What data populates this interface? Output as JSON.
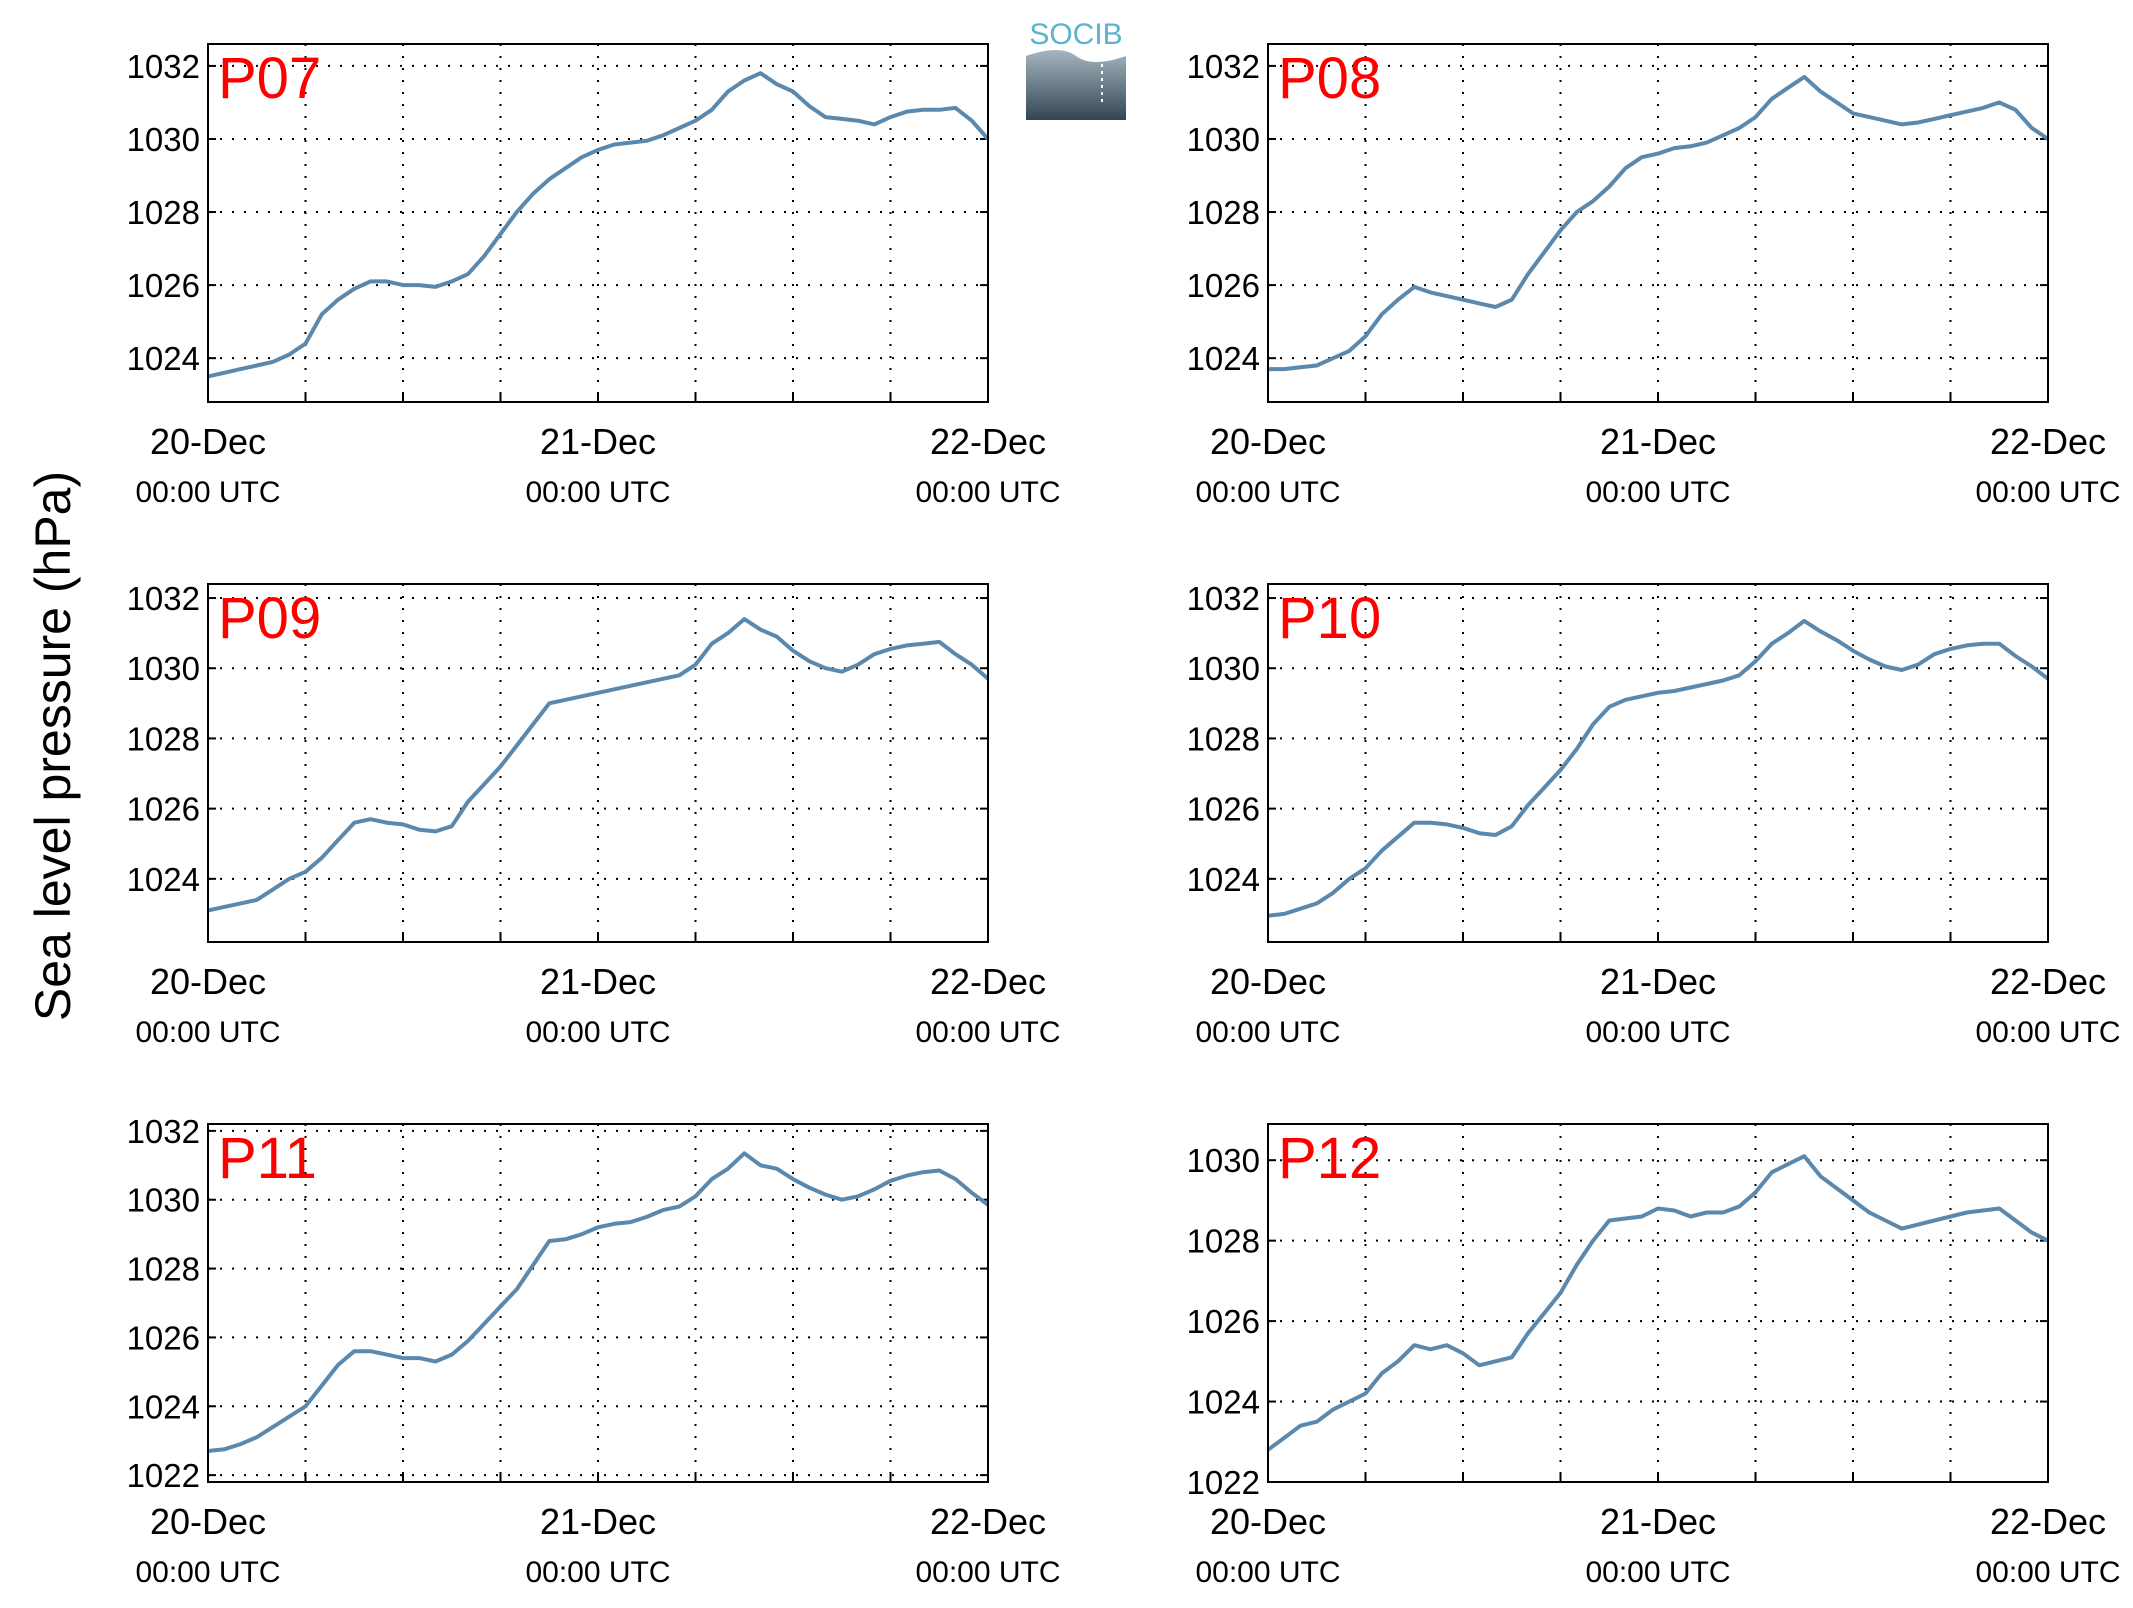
{
  "figure": {
    "ylabel": "Sea level pressure (hPa)",
    "logo_text": "SOCIB",
    "line_color": "#5b88ad",
    "label_color": "#ff0000"
  },
  "chart_data": [
    {
      "type": "line",
      "panel": "P07",
      "x_ticks": [
        {
          "date": "20-Dec",
          "time": "00:00 UTC"
        },
        {
          "date": "21-Dec",
          "time": "00:00 UTC"
        },
        {
          "date": "22-Dec",
          "time": "00:00 UTC"
        }
      ],
      "xlim_hours": [
        0,
        48
      ],
      "ylim": [
        1022.8,
        1032.6
      ],
      "yticks": [
        1024,
        1026,
        1028,
        1030,
        1032
      ],
      "x_hours": [
        0,
        1,
        2,
        3,
        4,
        5,
        6,
        7,
        8,
        9,
        10,
        11,
        12,
        13,
        14,
        15,
        16,
        17,
        18,
        19,
        20,
        21,
        22,
        23,
        24,
        25,
        26,
        27,
        28,
        29,
        30,
        31,
        32,
        33,
        34,
        35,
        36,
        37,
        38,
        39,
        40,
        41,
        42,
        43,
        44,
        45,
        46,
        47,
        48
      ],
      "values": [
        1023.5,
        1023.6,
        1023.7,
        1023.8,
        1023.9,
        1024.1,
        1024.4,
        1025.2,
        1025.6,
        1025.9,
        1026.1,
        1026.1,
        1026.0,
        1026.0,
        1025.95,
        1026.1,
        1026.3,
        1026.8,
        1027.4,
        1028.0,
        1028.5,
        1028.9,
        1029.2,
        1029.5,
        1029.7,
        1029.85,
        1029.9,
        1029.95,
        1030.1,
        1030.3,
        1030.5,
        1030.8,
        1031.3,
        1031.6,
        1031.8,
        1031.5,
        1031.3,
        1030.9,
        1030.6,
        1030.55,
        1030.5,
        1030.4,
        1030.6,
        1030.75,
        1030.8,
        1030.8,
        1030.85,
        1030.5,
        1030.0
      ]
    },
    {
      "type": "line",
      "panel": "P08",
      "x_ticks": [
        {
          "date": "20-Dec",
          "time": "00:00 UTC"
        },
        {
          "date": "21-Dec",
          "time": "00:00 UTC"
        },
        {
          "date": "22-Dec",
          "time": "00:00 UTC"
        }
      ],
      "xlim_hours": [
        0,
        48
      ],
      "ylim": [
        1022.8,
        1032.6
      ],
      "yticks": [
        1024,
        1026,
        1028,
        1030,
        1032
      ],
      "x_hours": [
        0,
        1,
        2,
        3,
        4,
        5,
        6,
        7,
        8,
        9,
        10,
        11,
        12,
        13,
        14,
        15,
        16,
        17,
        18,
        19,
        20,
        21,
        22,
        23,
        24,
        25,
        26,
        27,
        28,
        29,
        30,
        31,
        32,
        33,
        34,
        35,
        36,
        37,
        38,
        39,
        40,
        41,
        42,
        43,
        44,
        45,
        46,
        47,
        48
      ],
      "values": [
        1023.7,
        1023.7,
        1023.75,
        1023.8,
        1024.0,
        1024.2,
        1024.6,
        1025.2,
        1025.6,
        1025.95,
        1025.8,
        1025.7,
        1025.6,
        1025.5,
        1025.4,
        1025.6,
        1026.3,
        1026.9,
        1027.5,
        1028.0,
        1028.3,
        1028.7,
        1029.2,
        1029.5,
        1029.6,
        1029.75,
        1029.8,
        1029.9,
        1030.1,
        1030.3,
        1030.6,
        1031.1,
        1031.4,
        1031.7,
        1031.3,
        1031.0,
        1030.7,
        1030.6,
        1030.5,
        1030.4,
        1030.45,
        1030.55,
        1030.65,
        1030.75,
        1030.85,
        1031.0,
        1030.8,
        1030.3,
        1030.0
      ]
    },
    {
      "type": "line",
      "panel": "P09",
      "x_ticks": [
        {
          "date": "20-Dec",
          "time": "00:00 UTC"
        },
        {
          "date": "21-Dec",
          "time": "00:00 UTC"
        },
        {
          "date": "22-Dec",
          "time": "00:00 UTC"
        }
      ],
      "xlim_hours": [
        0,
        48
      ],
      "ylim": [
        1022.2,
        1032.4
      ],
      "yticks": [
        1024,
        1026,
        1028,
        1030,
        1032
      ],
      "x_hours": [
        0,
        1,
        2,
        3,
        4,
        5,
        6,
        7,
        8,
        9,
        10,
        11,
        12,
        13,
        14,
        15,
        16,
        17,
        18,
        19,
        20,
        21,
        22,
        23,
        24,
        25,
        26,
        27,
        28,
        29,
        30,
        31,
        32,
        33,
        34,
        35,
        36,
        37,
        38,
        39,
        40,
        41,
        42,
        43,
        44,
        45,
        46,
        47,
        48
      ],
      "values": [
        1023.1,
        1023.2,
        1023.3,
        1023.4,
        1023.7,
        1024.0,
        1024.2,
        1024.6,
        1025.1,
        1025.6,
        1025.7,
        1025.6,
        1025.55,
        1025.4,
        1025.35,
        1025.5,
        1026.2,
        1026.7,
        1027.2,
        1027.8,
        1028.4,
        1029.0,
        1029.1,
        1029.2,
        1029.3,
        1029.4,
        1029.5,
        1029.6,
        1029.7,
        1029.8,
        1030.1,
        1030.7,
        1031.0,
        1031.4,
        1031.1,
        1030.9,
        1030.5,
        1030.2,
        1030.0,
        1029.9,
        1030.1,
        1030.4,
        1030.55,
        1030.65,
        1030.7,
        1030.75,
        1030.4,
        1030.1,
        1029.7
      ]
    },
    {
      "type": "line",
      "panel": "P10",
      "x_ticks": [
        {
          "date": "20-Dec",
          "time": "00:00 UTC"
        },
        {
          "date": "21-Dec",
          "time": "00:00 UTC"
        },
        {
          "date": "22-Dec",
          "time": "00:00 UTC"
        }
      ],
      "xlim_hours": [
        0,
        48
      ],
      "ylim": [
        1022.2,
        1032.4
      ],
      "yticks": [
        1024,
        1026,
        1028,
        1030,
        1032
      ],
      "x_hours": [
        0,
        1,
        2,
        3,
        4,
        5,
        6,
        7,
        8,
        9,
        10,
        11,
        12,
        13,
        14,
        15,
        16,
        17,
        18,
        19,
        20,
        21,
        22,
        23,
        24,
        25,
        26,
        27,
        28,
        29,
        30,
        31,
        32,
        33,
        34,
        35,
        36,
        37,
        38,
        39,
        40,
        41,
        42,
        43,
        44,
        45,
        46,
        47,
        48
      ],
      "values": [
        1022.95,
        1023.0,
        1023.15,
        1023.3,
        1023.6,
        1024.0,
        1024.3,
        1024.8,
        1025.2,
        1025.6,
        1025.6,
        1025.55,
        1025.45,
        1025.3,
        1025.25,
        1025.5,
        1026.1,
        1026.6,
        1027.1,
        1027.7,
        1028.4,
        1028.9,
        1029.1,
        1029.2,
        1029.3,
        1029.35,
        1029.45,
        1029.55,
        1029.65,
        1029.8,
        1030.2,
        1030.7,
        1031.0,
        1031.35,
        1031.05,
        1030.8,
        1030.5,
        1030.25,
        1030.05,
        1029.95,
        1030.1,
        1030.4,
        1030.55,
        1030.65,
        1030.7,
        1030.7,
        1030.35,
        1030.05,
        1029.7
      ]
    },
    {
      "type": "line",
      "panel": "P11",
      "x_ticks": [
        {
          "date": "20-Dec",
          "time": "00:00 UTC"
        },
        {
          "date": "21-Dec",
          "time": "00:00 UTC"
        },
        {
          "date": "22-Dec",
          "time": "00:00 UTC"
        }
      ],
      "xlim_hours": [
        0,
        48
      ],
      "ylim": [
        1021.8,
        1032.2
      ],
      "yticks": [
        1022,
        1024,
        1026,
        1028,
        1030,
        1032
      ],
      "x_hours": [
        0,
        1,
        2,
        3,
        4,
        5,
        6,
        7,
        8,
        9,
        10,
        11,
        12,
        13,
        14,
        15,
        16,
        17,
        18,
        19,
        20,
        21,
        22,
        23,
        24,
        25,
        26,
        27,
        28,
        29,
        30,
        31,
        32,
        33,
        34,
        35,
        36,
        37,
        38,
        39,
        40,
        41,
        42,
        43,
        44,
        45,
        46,
        47,
        48
      ],
      "values": [
        1022.7,
        1022.75,
        1022.9,
        1023.1,
        1023.4,
        1023.7,
        1024.0,
        1024.6,
        1025.2,
        1025.6,
        1025.6,
        1025.5,
        1025.4,
        1025.4,
        1025.3,
        1025.5,
        1025.9,
        1026.4,
        1026.9,
        1027.4,
        1028.1,
        1028.8,
        1028.85,
        1029.0,
        1029.2,
        1029.3,
        1029.35,
        1029.5,
        1029.7,
        1029.8,
        1030.1,
        1030.6,
        1030.9,
        1031.35,
        1031.0,
        1030.9,
        1030.6,
        1030.35,
        1030.15,
        1030.0,
        1030.1,
        1030.3,
        1030.55,
        1030.7,
        1030.8,
        1030.85,
        1030.6,
        1030.2,
        1029.85
      ]
    },
    {
      "type": "line",
      "panel": "P12",
      "x_ticks": [
        {
          "date": "20-Dec",
          "time": "00:00 UTC"
        },
        {
          "date": "21-Dec",
          "time": "00:00 UTC"
        },
        {
          "date": "22-Dec",
          "time": "00:00 UTC"
        }
      ],
      "xlim_hours": [
        0,
        48
      ],
      "ylim": [
        1022.0,
        1030.9
      ],
      "yticks": [
        1022,
        1024,
        1026,
        1028,
        1030
      ],
      "x_hours": [
        0,
        1,
        2,
        3,
        4,
        5,
        6,
        7,
        8,
        9,
        10,
        11,
        12,
        13,
        14,
        15,
        16,
        17,
        18,
        19,
        20,
        21,
        22,
        23,
        24,
        25,
        26,
        27,
        28,
        29,
        30,
        31,
        32,
        33,
        34,
        35,
        36,
        37,
        38,
        39,
        40,
        41,
        42,
        43,
        44,
        45,
        46,
        47,
        48
      ],
      "values": [
        1022.8,
        1023.1,
        1023.4,
        1023.5,
        1023.8,
        1024.0,
        1024.2,
        1024.7,
        1025.0,
        1025.4,
        1025.3,
        1025.4,
        1025.2,
        1024.9,
        1025.0,
        1025.1,
        1025.7,
        1026.2,
        1026.7,
        1027.4,
        1028.0,
        1028.5,
        1028.55,
        1028.6,
        1028.8,
        1028.75,
        1028.6,
        1028.7,
        1028.7,
        1028.85,
        1029.2,
        1029.7,
        1029.9,
        1030.1,
        1029.6,
        1029.3,
        1029.0,
        1028.7,
        1028.5,
        1028.3,
        1028.4,
        1028.5,
        1028.6,
        1028.7,
        1028.75,
        1028.8,
        1028.5,
        1028.2,
        1028.0
      ]
    }
  ]
}
